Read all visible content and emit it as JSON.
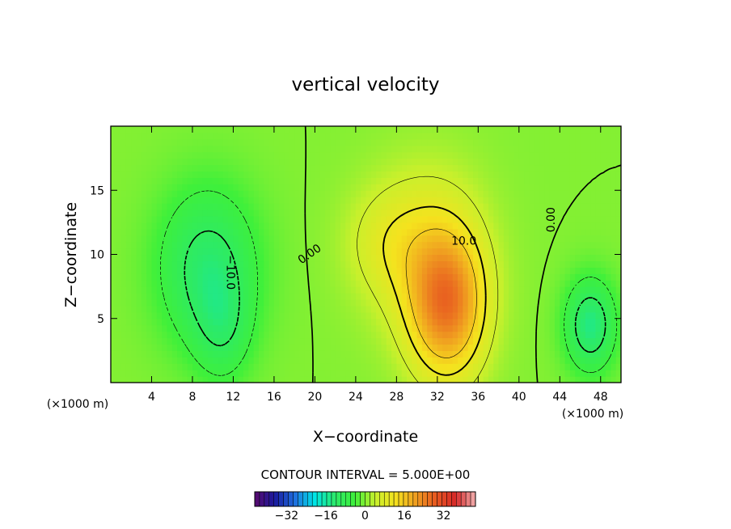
{
  "chart_data": {
    "type": "heatmap",
    "title": "vertical velocity",
    "xlabel": "X−coordinate",
    "ylabel": "Z−coordinate",
    "x_unit_left": "(×1000 m)",
    "x_unit_right": "(×1000 m)",
    "xlim": [
      0,
      50
    ],
    "ylim": [
      0,
      20
    ],
    "x_ticks": [
      4,
      8,
      12,
      16,
      20,
      24,
      28,
      32,
      36,
      40,
      44,
      48
    ],
    "y_ticks": [
      5,
      10,
      15
    ],
    "x_tick_labels": [
      "4",
      "8",
      "12",
      "16",
      "20",
      "24",
      "28",
      "32",
      "36",
      "40",
      "44",
      "48"
    ],
    "y_tick_labels": [
      "5",
      "10",
      "15"
    ],
    "contour_interval_text": "CONTOUR INTERVAL = 5.000E+00",
    "contour_labels": [
      {
        "text": "0.00",
        "x": 19.5,
        "y": 10.0,
        "angle": -35
      },
      {
        "text": "−10.0",
        "x": 11.7,
        "y": 8.6,
        "angle": 90
      },
      {
        "text": "10.0",
        "x": 34.6,
        "y": 11.0,
        "angle": 0
      },
      {
        "text": "0.00",
        "x": 43.2,
        "y": 12.7,
        "angle": -90
      }
    ],
    "field_features": [
      {
        "kind": "updraft",
        "center": [
          33,
          6
        ],
        "peak": 22,
        "sigma": [
          2.6,
          4.0
        ]
      },
      {
        "kind": "updraft",
        "center": [
          31,
          10
        ],
        "peak": 8,
        "sigma": [
          4.0,
          5.0
        ]
      },
      {
        "kind": "updraft",
        "center": [
          27,
          11
        ],
        "peak": 5,
        "sigma": [
          3.0,
          3.0
        ]
      },
      {
        "kind": "downdraft",
        "center": [
          9.5,
          9
        ],
        "peak": -12,
        "sigma": [
          3.5,
          4.5
        ]
      },
      {
        "kind": "downdraft",
        "center": [
          11,
          4
        ],
        "peak": -6,
        "sigma": [
          2.0,
          3.0
        ]
      },
      {
        "kind": "downdraft",
        "center": [
          47,
          4.5
        ],
        "peak": -14,
        "sigma": [
          1.8,
          2.6
        ]
      }
    ],
    "colorbar": {
      "min": -45,
      "max": 45,
      "tick_values": [
        -32,
        -16,
        0,
        16,
        32
      ],
      "tick_labels": [
        "−32",
        "−16",
        "0",
        "16",
        "32"
      ],
      "colors": [
        "#5a0a6e",
        "#1a1a9e",
        "#1f6fe0",
        "#00e6e6",
        "#2bea6a",
        "#3ff03a",
        "#c8f02c",
        "#f5e21e",
        "#f0a020",
        "#e85a20",
        "#d62828",
        "#f2b0b0"
      ]
    }
  }
}
